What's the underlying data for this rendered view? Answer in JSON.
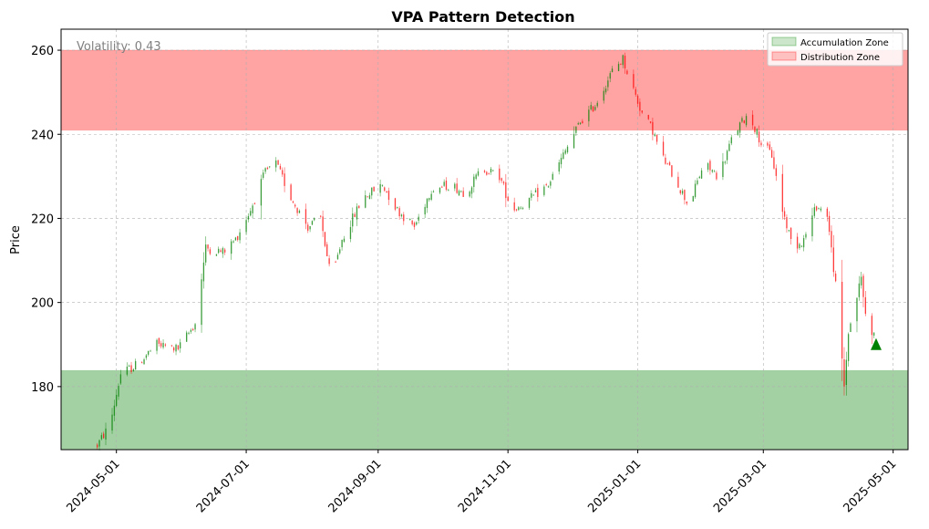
{
  "chart_data": {
    "type": "candlestick",
    "title": "VPA Pattern Detection",
    "xlabel": "",
    "ylabel": "Price",
    "x_type": "date",
    "xlim": [
      "2024-04-05",
      "2025-05-08"
    ],
    "ylim": [
      165,
      265
    ],
    "xticks": [
      "2024-05-01",
      "2024-07-01",
      "2024-09-01",
      "2024-11-01",
      "2025-01-01",
      "2025-03-01",
      "2025-05-01"
    ],
    "yticks": [
      180,
      200,
      220,
      240,
      260
    ],
    "grid": true,
    "annotation": "Volatility: 0.43",
    "legend_position": "top-right",
    "zones": [
      {
        "name": "Accumulation Zone",
        "y0": 165,
        "y1": 183.8,
        "color": "#008000"
      },
      {
        "name": "Distribution Zone",
        "y0": 241,
        "y1": 260,
        "color": "#ff0000"
      }
    ],
    "signals": [
      {
        "date": "2025-04-23",
        "price": 190,
        "marker": "triangle-up",
        "color": "#008000"
      }
    ],
    "colors": {
      "up": "#008000",
      "down": "#ff0000"
    },
    "keypoints": [
      [
        "2024-04-22",
        166
      ],
      [
        "2024-04-28",
        171
      ],
      [
        "2024-05-03",
        183
      ],
      [
        "2024-05-10",
        185
      ],
      [
        "2024-05-20",
        190
      ],
      [
        "2024-05-30",
        189
      ],
      [
        "2024-06-07",
        195
      ],
      [
        "2024-06-12",
        213
      ],
      [
        "2024-06-20",
        212
      ],
      [
        "2024-06-26",
        215
      ],
      [
        "2024-07-03",
        222
      ],
      [
        "2024-07-10",
        231
      ],
      [
        "2024-07-15",
        233
      ],
      [
        "2024-07-22",
        225
      ],
      [
        "2024-07-30",
        218
      ],
      [
        "2024-08-05",
        220
      ],
      [
        "2024-08-10",
        205
      ],
      [
        "2024-08-15",
        215
      ],
      [
        "2024-08-25",
        225
      ],
      [
        "2024-09-03",
        228
      ],
      [
        "2024-09-10",
        222
      ],
      [
        "2024-09-18",
        218
      ],
      [
        "2024-09-26",
        227
      ],
      [
        "2024-10-05",
        228
      ],
      [
        "2024-10-12",
        226
      ],
      [
        "2024-10-20",
        232
      ],
      [
        "2024-10-28",
        230
      ],
      [
        "2024-11-03",
        222
      ],
      [
        "2024-11-10",
        224
      ],
      [
        "2024-11-20",
        228
      ],
      [
        "2024-11-28",
        236
      ],
      [
        "2024-12-05",
        243
      ],
      [
        "2024-12-12",
        247
      ],
      [
        "2024-12-20",
        255
      ],
      [
        "2024-12-25",
        258
      ],
      [
        "2024-12-29",
        252
      ],
      [
        "2025-01-03",
        245
      ],
      [
        "2025-01-08",
        241
      ],
      [
        "2025-01-12",
        235
      ],
      [
        "2025-01-18",
        230
      ],
      [
        "2025-01-25",
        223
      ],
      [
        "2025-02-01",
        233
      ],
      [
        "2025-02-08",
        230
      ],
      [
        "2025-02-15",
        240
      ],
      [
        "2025-02-22",
        245
      ],
      [
        "2025-02-28",
        238
      ],
      [
        "2025-03-05",
        235
      ],
      [
        "2025-03-10",
        222
      ],
      [
        "2025-03-15",
        213
      ],
      [
        "2025-03-20",
        215
      ],
      [
        "2025-03-26",
        223
      ],
      [
        "2025-03-31",
        221
      ],
      [
        "2025-04-04",
        204
      ],
      [
        "2025-04-08",
        180
      ],
      [
        "2025-04-10",
        193
      ],
      [
        "2025-04-12",
        197
      ],
      [
        "2025-04-16",
        206
      ],
      [
        "2025-04-18",
        197
      ],
      [
        "2025-04-22",
        192
      ]
    ]
  }
}
